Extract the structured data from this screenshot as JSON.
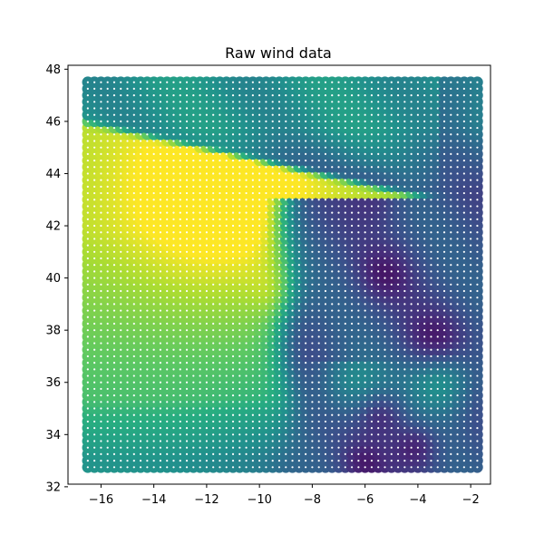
{
  "chart_data": {
    "type": "scatter",
    "title": "Raw wind data",
    "xlabel": "",
    "ylabel": "",
    "xlim": [
      -17.25,
      -1.25
    ],
    "ylim": [
      32.1,
      48.15
    ],
    "xticks": [
      -16,
      -14,
      -12,
      -10,
      -8,
      -6,
      -4,
      -2
    ],
    "yticks": [
      32,
      34,
      36,
      38,
      40,
      42,
      44,
      46,
      48
    ],
    "grid": false,
    "legend": "none",
    "colormap": "viridis",
    "value_range": [
      0,
      1
    ],
    "grid_points": {
      "x_start": -16.5,
      "x_end": -1.75,
      "x_step": 0.25,
      "y_start": 32.75,
      "y_end": 47.5,
      "y_step": 0.25
    },
    "marker_color": "colormap",
    "center_dot_color": "#ffffff",
    "regions_note_values": {
      "background_base": 0.7,
      "yellow_plume_peak": 0.95,
      "teal_coast_band": 0.55
    }
  }
}
